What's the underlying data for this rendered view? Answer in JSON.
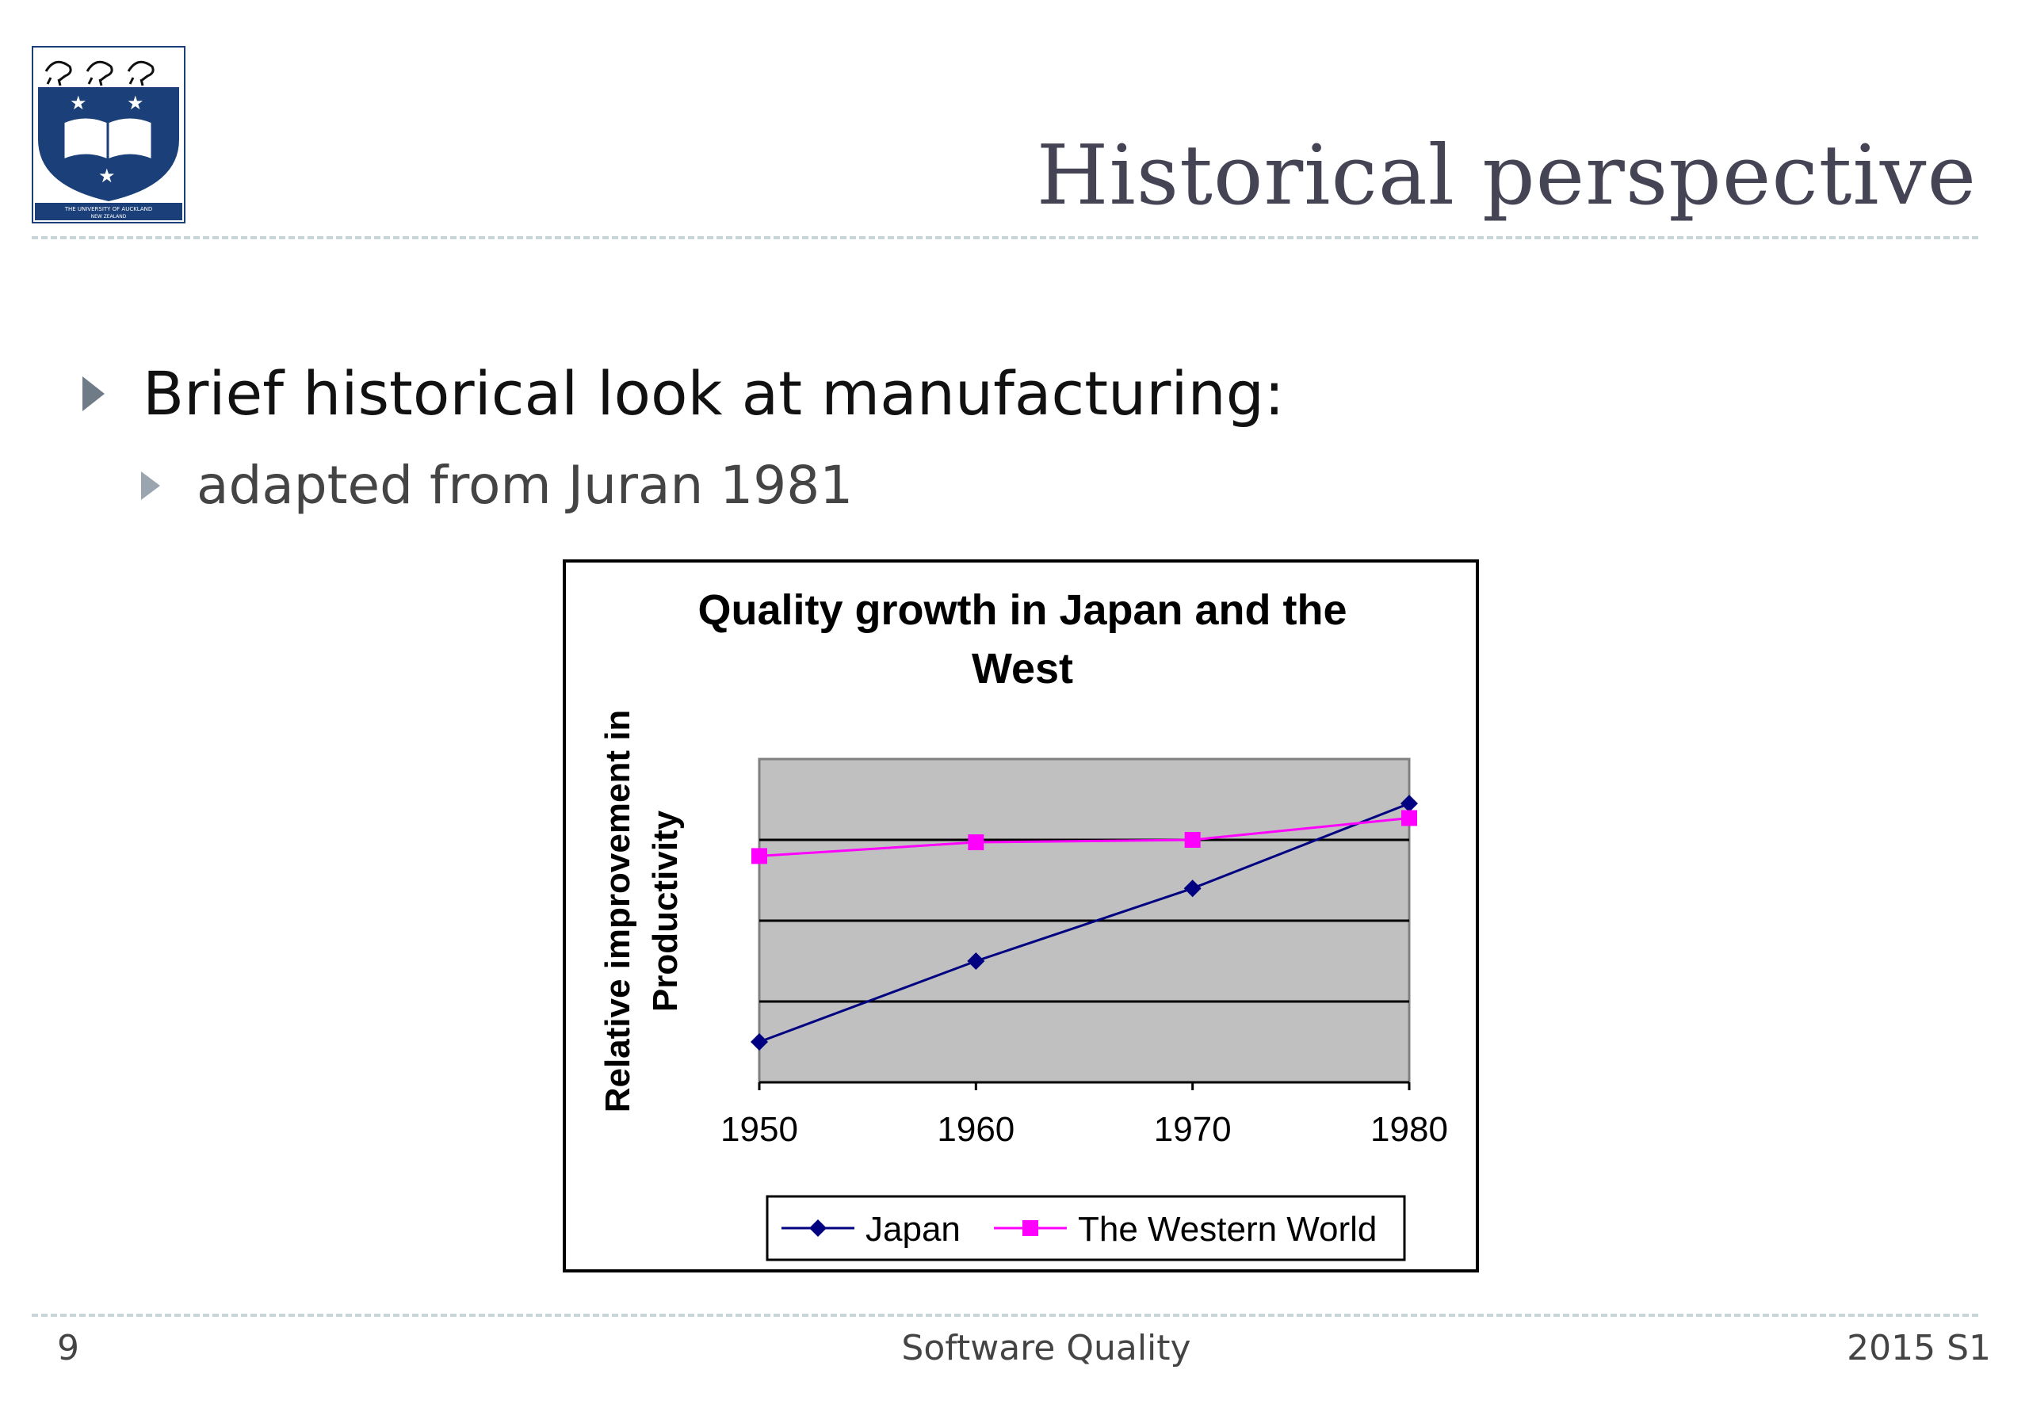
{
  "slide": {
    "title": "Historical perspective",
    "bullets": [
      {
        "text": "Brief historical look at manufacturing:"
      },
      {
        "text": "adapted from Juran 1981"
      }
    ],
    "footer": {
      "page_number": "9",
      "course": "Software Quality",
      "semester": "2015 S1"
    },
    "logo": {
      "line1": "THE UNIVERSITY OF AUCKLAND",
      "line2": "NEW ZEALAND"
    }
  },
  "colors": {
    "title": "#444455",
    "japan": "#000080",
    "west": "#ff00ff",
    "plot_bg": "#c0c0c0",
    "logo_blue": "#1b3f78"
  },
  "chart_data": {
    "type": "line",
    "title_lines": [
      "Quality growth in Japan and the",
      "West"
    ],
    "ylabel_lines": [
      "Relative improvement in",
      "Productivity"
    ],
    "xlabel": "",
    "x": [
      "1950",
      "1960",
      "1970",
      "1980"
    ],
    "ylim": [
      0,
      4
    ],
    "grid": true,
    "series": [
      {
        "name": "Japan",
        "values": [
          0.5,
          1.5,
          2.4,
          3.45
        ],
        "color": "#000080",
        "marker": "diamond"
      },
      {
        "name": "The Western World",
        "values": [
          2.8,
          2.97,
          3.0,
          3.27
        ],
        "color": "#ff00ff",
        "marker": "square"
      }
    ],
    "legend": "bottom"
  }
}
